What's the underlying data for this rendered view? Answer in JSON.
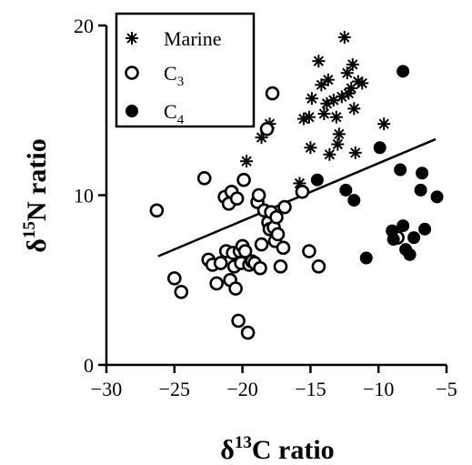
{
  "chart_data": {
    "type": "scatter",
    "title": "",
    "xlabel": {
      "prefix": "δ",
      "sup": "13",
      "main": "C ratio"
    },
    "ylabel": {
      "prefix": "δ",
      "sup": "15",
      "main": "N ratio"
    },
    "xlim": [
      -30,
      -5
    ],
    "ylim": [
      0,
      20
    ],
    "xticks": [
      -30,
      -25,
      -20,
      -15,
      -10,
      -5
    ],
    "xtick_labels": [
      "−30",
      "−25",
      "−20",
      "−15",
      "−10",
      "−5"
    ],
    "yticks": [
      0,
      10,
      20
    ],
    "ytick_labels": [
      "0",
      "10",
      "20"
    ],
    "grid": false,
    "legend_position": "top-left",
    "legend": [
      {
        "series": "marine",
        "label": "Marine",
        "sub": ""
      },
      {
        "series": "c3",
        "label": "C",
        "sub": "3"
      },
      {
        "series": "c4",
        "label": "C",
        "sub": "4"
      }
    ],
    "series": [
      {
        "key": "marine",
        "name": "Marine",
        "marker": "asterisk",
        "points": [
          [
            -19.7,
            12.0
          ],
          [
            -18.6,
            13.4
          ],
          [
            -18.0,
            14.2
          ],
          [
            -15.8,
            10.7
          ],
          [
            -15.5,
            14.5
          ],
          [
            -15.1,
            14.6
          ],
          [
            -15.0,
            12.8
          ],
          [
            -14.9,
            15.7
          ],
          [
            -14.4,
            17.9
          ],
          [
            -14.2,
            16.5
          ],
          [
            -14.0,
            14.8
          ],
          [
            -13.8,
            15.4
          ],
          [
            -13.7,
            16.8
          ],
          [
            -13.6,
            12.4
          ],
          [
            -13.3,
            15.6
          ],
          [
            -13.1,
            14.6
          ],
          [
            -13.0,
            13.0
          ],
          [
            -12.9,
            13.6
          ],
          [
            -12.7,
            15.8
          ],
          [
            -12.5,
            19.3
          ],
          [
            -12.3,
            17.2
          ],
          [
            -12.2,
            16.0
          ],
          [
            -12.0,
            16.3
          ],
          [
            -11.9,
            17.7
          ],
          [
            -11.8,
            15.1
          ],
          [
            -11.7,
            12.5
          ],
          [
            -11.5,
            16.7
          ],
          [
            -11.2,
            16.6
          ],
          [
            -9.6,
            14.2
          ]
        ]
      },
      {
        "key": "c3",
        "name": "C3",
        "marker": "open-circle",
        "points": [
          [
            -26.3,
            9.1
          ],
          [
            -25.0,
            5.1
          ],
          [
            -24.5,
            4.3
          ],
          [
            -22.8,
            11.0
          ],
          [
            -22.5,
            6.2
          ],
          [
            -22.2,
            5.9
          ],
          [
            -21.9,
            4.8
          ],
          [
            -21.6,
            6.0
          ],
          [
            -21.3,
            9.9
          ],
          [
            -21.2,
            6.7
          ],
          [
            -21.0,
            9.5
          ],
          [
            -20.9,
            5.0
          ],
          [
            -20.8,
            10.2
          ],
          [
            -20.7,
            6.6
          ],
          [
            -20.6,
            5.8
          ],
          [
            -20.5,
            4.5
          ],
          [
            -20.4,
            9.8
          ],
          [
            -20.3,
            2.6
          ],
          [
            -20.2,
            6.7
          ],
          [
            -20.1,
            6.0
          ],
          [
            -20.0,
            7.0
          ],
          [
            -19.9,
            10.9
          ],
          [
            -19.8,
            6.7
          ],
          [
            -19.6,
            1.9
          ],
          [
            -19.5,
            5.9
          ],
          [
            -19.3,
            6.1
          ],
          [
            -19.1,
            6.0
          ],
          [
            -18.9,
            9.6
          ],
          [
            -18.8,
            10.0
          ],
          [
            -18.7,
            5.7
          ],
          [
            -18.6,
            7.1
          ],
          [
            -18.4,
            9.1
          ],
          [
            -18.2,
            13.9
          ],
          [
            -18.1,
            8.4
          ],
          [
            -18.0,
            8.0
          ],
          [
            -17.9,
            9.0
          ],
          [
            -17.8,
            16.0
          ],
          [
            -17.7,
            8.1
          ],
          [
            -17.6,
            7.3
          ],
          [
            -17.5,
            8.7
          ],
          [
            -17.4,
            7.7
          ],
          [
            -17.2,
            5.8
          ],
          [
            -17.0,
            6.9
          ],
          [
            -16.9,
            9.3
          ],
          [
            -15.6,
            10.2
          ],
          [
            -15.1,
            6.7
          ],
          [
            -14.4,
            5.8
          ],
          [
            -8.6,
            7.5
          ]
        ]
      },
      {
        "key": "c4",
        "name": "C4",
        "marker": "filled-circle",
        "points": [
          [
            -14.5,
            10.9
          ],
          [
            -12.4,
            10.3
          ],
          [
            -11.8,
            9.7
          ],
          [
            -10.9,
            6.3
          ],
          [
            -9.9,
            12.8
          ],
          [
            -9.0,
            7.9
          ],
          [
            -8.9,
            7.4
          ],
          [
            -8.4,
            11.5
          ],
          [
            -8.2,
            8.2
          ],
          [
            -8.0,
            6.8
          ],
          [
            -7.7,
            6.5
          ],
          [
            -7.4,
            7.5
          ],
          [
            -6.9,
            10.3
          ],
          [
            -6.8,
            11.3
          ],
          [
            -6.6,
            8.0
          ],
          [
            -5.7,
            9.9
          ],
          [
            -8.2,
            17.3
          ]
        ]
      }
    ],
    "trendline": {
      "x1": -26.2,
      "y1": 6.4,
      "x2": -5.8,
      "y2": 13.3
    }
  }
}
